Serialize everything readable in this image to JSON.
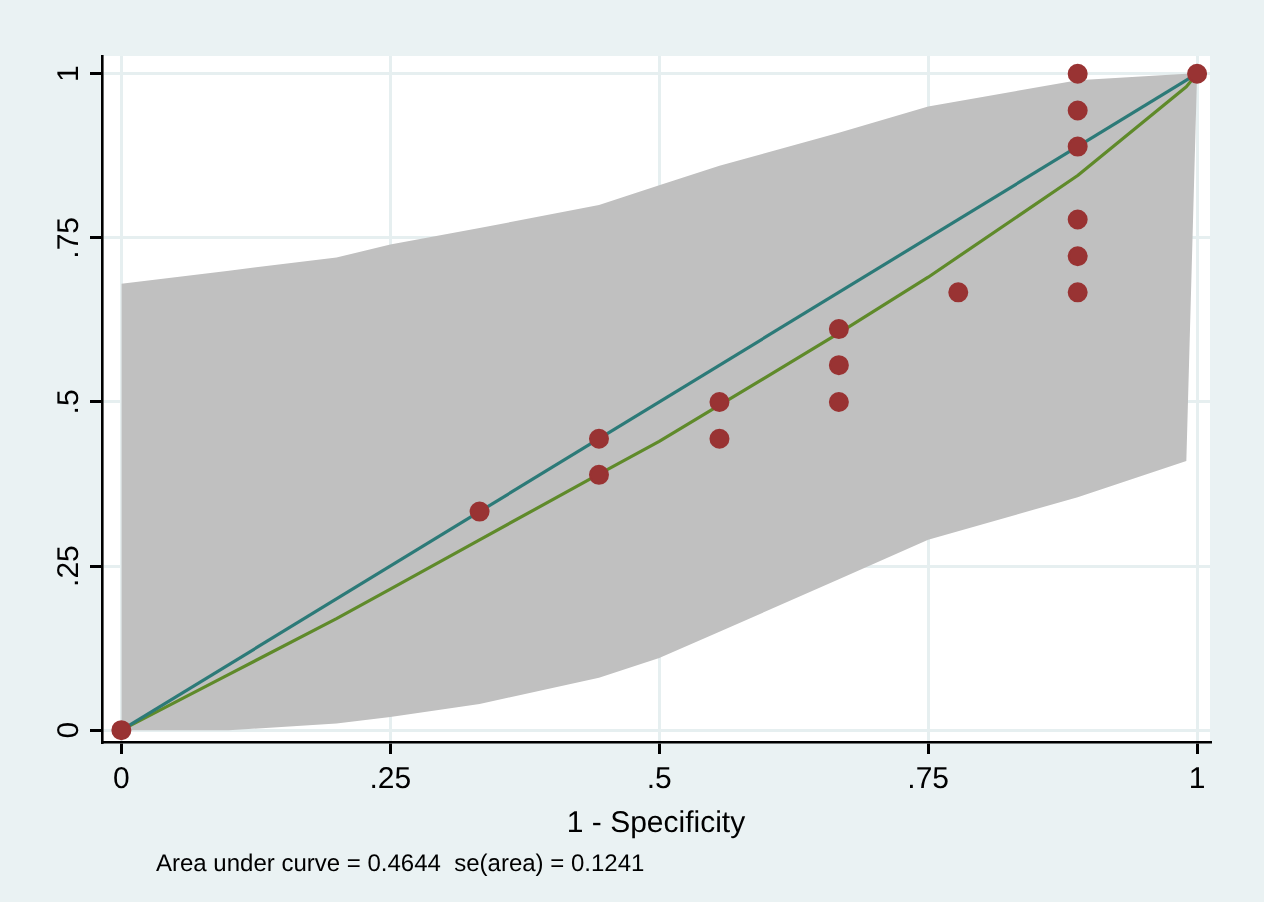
{
  "chart_data": {
    "type": "line",
    "xlabel": "1 - Specificity",
    "annotations": [
      "Area under curve = 0.4644  se(area) = 0.1241"
    ],
    "xlim": [
      -0.018,
      1.012
    ],
    "ylim": [
      -0.018,
      1.027
    ],
    "xticks": [
      0,
      {
        "value": 0.25,
        "label": ".25"
      },
      {
        "value": 0.5,
        "label": ".5"
      },
      {
        "value": 0.75,
        "label": ".75"
      },
      1
    ],
    "yticks": [
      0,
      {
        "value": 0.25,
        "label": ".25"
      },
      {
        "value": 0.5,
        "label": ".5"
      },
      {
        "value": 0.75,
        "label": ".75"
      },
      1
    ],
    "grid": true,
    "legend": false,
    "series": [
      {
        "color": "#2c7a78",
        "marker": "none",
        "x": [
          0,
          1
        ],
        "values": [
          0,
          1
        ]
      },
      {
        "color": "#5f8a2a",
        "marker": "none",
        "x": [
          0,
          0.1,
          0.2,
          0.25,
          0.333,
          0.444,
          0.5,
          0.556,
          0.667,
          0.75,
          0.889,
          0.99,
          1
        ],
        "values": [
          0,
          0.085,
          0.17,
          0.215,
          0.29,
          0.39,
          0.44,
          0.495,
          0.605,
          0.69,
          0.845,
          0.98,
          1
        ],
        "lower": [
          0,
          0,
          0.01,
          0.02,
          0.04,
          0.08,
          0.11,
          0.15,
          0.23,
          0.29,
          0.355,
          0.41,
          1
        ],
        "upper": [
          0.68,
          0.7,
          0.72,
          0.74,
          0.765,
          0.8,
          0.83,
          0.86,
          0.91,
          0.95,
          0.99,
          1,
          1
        ]
      },
      {
        "type": "scatter",
        "color": "#993333",
        "marker": "circle",
        "x": [
          0,
          0.333,
          0.444,
          0.444,
          0.556,
          0.556,
          0.667,
          0.667,
          0.667,
          0.778,
          0.889,
          0.889,
          0.889,
          0.889,
          0.889,
          0.889,
          1
        ],
        "values": [
          0,
          0.333,
          0.444,
          0.389,
          0.5,
          0.444,
          0.611,
          0.556,
          0.5,
          0.667,
          1,
          0.944,
          0.889,
          0.778,
          0.722,
          0.667,
          1
        ]
      }
    ]
  }
}
